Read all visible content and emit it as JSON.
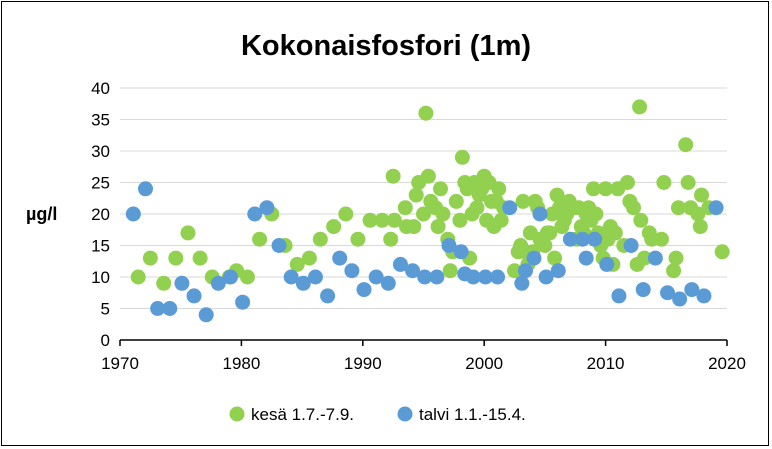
{
  "chart_data": {
    "type": "scatter",
    "title": "Kokonaisfosfori (1m)",
    "xlabel": "",
    "ylabel": "µg/l",
    "xlim": [
      1970,
      2020
    ],
    "ylim": [
      0,
      40
    ],
    "xticks": [
      1970,
      1980,
      1990,
      2000,
      2010,
      2020
    ],
    "yticks": [
      0,
      5,
      10,
      15,
      20,
      25,
      30,
      35,
      40
    ],
    "grid": "horizontal",
    "legend_position": "bottom",
    "series": [
      {
        "name": "kesä 1.7.-7.9.",
        "color": "#92d050",
        "points": [
          [
            1971.5,
            10
          ],
          [
            1972.5,
            13
          ],
          [
            1973.6,
            9
          ],
          [
            1974.6,
            13
          ],
          [
            1975.6,
            17
          ],
          [
            1976.6,
            13
          ],
          [
            1977.6,
            10
          ],
          [
            1979.0,
            10
          ],
          [
            1979.6,
            11
          ],
          [
            1980.5,
            10
          ],
          [
            1981.5,
            16
          ],
          [
            1982.5,
            20
          ],
          [
            1983.6,
            15
          ],
          [
            1984.6,
            12
          ],
          [
            1985.6,
            13
          ],
          [
            1986.5,
            16
          ],
          [
            1987.6,
            18
          ],
          [
            1988.6,
            20
          ],
          [
            1989.6,
            16
          ],
          [
            1990.6,
            19
          ],
          [
            1991.6,
            19
          ],
          [
            1992.3,
            16
          ],
          [
            1992.5,
            26
          ],
          [
            1992.6,
            19
          ],
          [
            1993.5,
            21
          ],
          [
            1993.6,
            18
          ],
          [
            1994.2,
            18
          ],
          [
            1994.4,
            23
          ],
          [
            1994.6,
            25
          ],
          [
            1995.0,
            20
          ],
          [
            1995.2,
            36
          ],
          [
            1995.4,
            26
          ],
          [
            1995.6,
            22
          ],
          [
            1996.0,
            21
          ],
          [
            1996.2,
            18
          ],
          [
            1996.4,
            24
          ],
          [
            1996.6,
            20
          ],
          [
            1997.0,
            16
          ],
          [
            1997.2,
            11
          ],
          [
            1997.4,
            14
          ],
          [
            1997.7,
            22
          ],
          [
            1998.0,
            19
          ],
          [
            1998.2,
            29
          ],
          [
            1998.4,
            25
          ],
          [
            1998.6,
            24
          ],
          [
            1998.8,
            13
          ],
          [
            1999.0,
            20
          ],
          [
            1999.2,
            25
          ],
          [
            1999.4,
            21
          ],
          [
            1999.6,
            23
          ],
          [
            1999.8,
            24
          ],
          [
            2000.0,
            26
          ],
          [
            2000.2,
            19
          ],
          [
            2000.4,
            25
          ],
          [
            2000.6,
            22
          ],
          [
            2000.8,
            18
          ],
          [
            2001.0,
            22
          ],
          [
            2001.2,
            24
          ],
          [
            2001.4,
            19
          ],
          [
            2001.6,
            21
          ],
          [
            2002.5,
            11
          ],
          [
            2002.8,
            14
          ],
          [
            2003.0,
            15
          ],
          [
            2003.2,
            22
          ],
          [
            2003.4,
            14
          ],
          [
            2003.6,
            12
          ],
          [
            2003.8,
            17
          ],
          [
            2004.0,
            14
          ],
          [
            2004.2,
            22
          ],
          [
            2004.4,
            21
          ],
          [
            2004.6,
            16
          ],
          [
            2004.8,
            16
          ],
          [
            2005.0,
            15
          ],
          [
            2005.2,
            17
          ],
          [
            2005.4,
            17
          ],
          [
            2005.6,
            20
          ],
          [
            2005.8,
            13
          ],
          [
            2006.0,
            23
          ],
          [
            2006.2,
            21
          ],
          [
            2006.4,
            18
          ],
          [
            2006.6,
            19
          ],
          [
            2006.8,
            20
          ],
          [
            2007.0,
            22
          ],
          [
            2007.2,
            21
          ],
          [
            2007.4,
            21
          ],
          [
            2007.6,
            16
          ],
          [
            2007.8,
            21
          ],
          [
            2008.0,
            18
          ],
          [
            2008.2,
            17
          ],
          [
            2008.4,
            20
          ],
          [
            2008.6,
            21
          ],
          [
            2008.8,
            19
          ],
          [
            2009.0,
            24
          ],
          [
            2009.2,
            20
          ],
          [
            2009.4,
            17
          ],
          [
            2009.6,
            15
          ],
          [
            2009.8,
            13
          ],
          [
            2010.0,
            24
          ],
          [
            2010.2,
            16
          ],
          [
            2010.4,
            18
          ],
          [
            2010.6,
            12
          ],
          [
            2010.8,
            17
          ],
          [
            2011.0,
            24
          ],
          [
            2011.5,
            15
          ],
          [
            2011.8,
            25
          ],
          [
            2012.0,
            22
          ],
          [
            2012.3,
            21
          ],
          [
            2012.6,
            12
          ],
          [
            2012.8,
            37
          ],
          [
            2012.9,
            19
          ],
          [
            2013.2,
            13
          ],
          [
            2013.6,
            17
          ],
          [
            2013.8,
            16
          ],
          [
            2014.6,
            16
          ],
          [
            2014.8,
            25
          ],
          [
            2015.6,
            11
          ],
          [
            2015.8,
            13
          ],
          [
            2016.0,
            21
          ],
          [
            2016.6,
            31
          ],
          [
            2016.8,
            25
          ],
          [
            2017.0,
            21
          ],
          [
            2017.6,
            20
          ],
          [
            2017.8,
            18
          ],
          [
            2017.9,
            23
          ],
          [
            2018.5,
            21
          ],
          [
            2019.6,
            14
          ]
        ]
      },
      {
        "name": "talvi 1.1.-15.4.",
        "color": "#5b9bd5",
        "points": [
          [
            1971.1,
            20
          ],
          [
            1972.1,
            24
          ],
          [
            1973.1,
            5
          ],
          [
            1974.1,
            5
          ],
          [
            1975.1,
            9
          ],
          [
            1976.1,
            7
          ],
          [
            1977.1,
            4
          ],
          [
            1978.1,
            9
          ],
          [
            1979.1,
            10
          ],
          [
            1980.1,
            6
          ],
          [
            1981.1,
            20
          ],
          [
            1982.1,
            21
          ],
          [
            1983.1,
            15
          ],
          [
            1984.1,
            10
          ],
          [
            1985.1,
            9
          ],
          [
            1986.1,
            10
          ],
          [
            1987.1,
            7
          ],
          [
            1988.1,
            13
          ],
          [
            1989.1,
            11
          ],
          [
            1990.1,
            8
          ],
          [
            1991.1,
            10
          ],
          [
            1992.1,
            9
          ],
          [
            1993.1,
            12
          ],
          [
            1994.1,
            11
          ],
          [
            1995.1,
            10
          ],
          [
            1996.1,
            10
          ],
          [
            1997.1,
            15
          ],
          [
            1998.1,
            14
          ],
          [
            1998.4,
            10.5
          ],
          [
            1999.1,
            10
          ],
          [
            2000.1,
            10
          ],
          [
            2001.1,
            10
          ],
          [
            2002.1,
            21
          ],
          [
            2003.1,
            9
          ],
          [
            2003.4,
            11
          ],
          [
            2004.1,
            13
          ],
          [
            2004.6,
            20
          ],
          [
            2005.1,
            10
          ],
          [
            2006.1,
            11
          ],
          [
            2007.1,
            16
          ],
          [
            2008.1,
            16
          ],
          [
            2008.4,
            13
          ],
          [
            2009.1,
            16
          ],
          [
            2010.1,
            12
          ],
          [
            2011.1,
            7
          ],
          [
            2012.1,
            15
          ],
          [
            2013.1,
            8
          ],
          [
            2014.1,
            13
          ],
          [
            2015.1,
            7.5
          ],
          [
            2016.1,
            6.5
          ],
          [
            2017.1,
            8
          ],
          [
            2018.1,
            7
          ],
          [
            2019.1,
            21
          ]
        ]
      }
    ]
  }
}
